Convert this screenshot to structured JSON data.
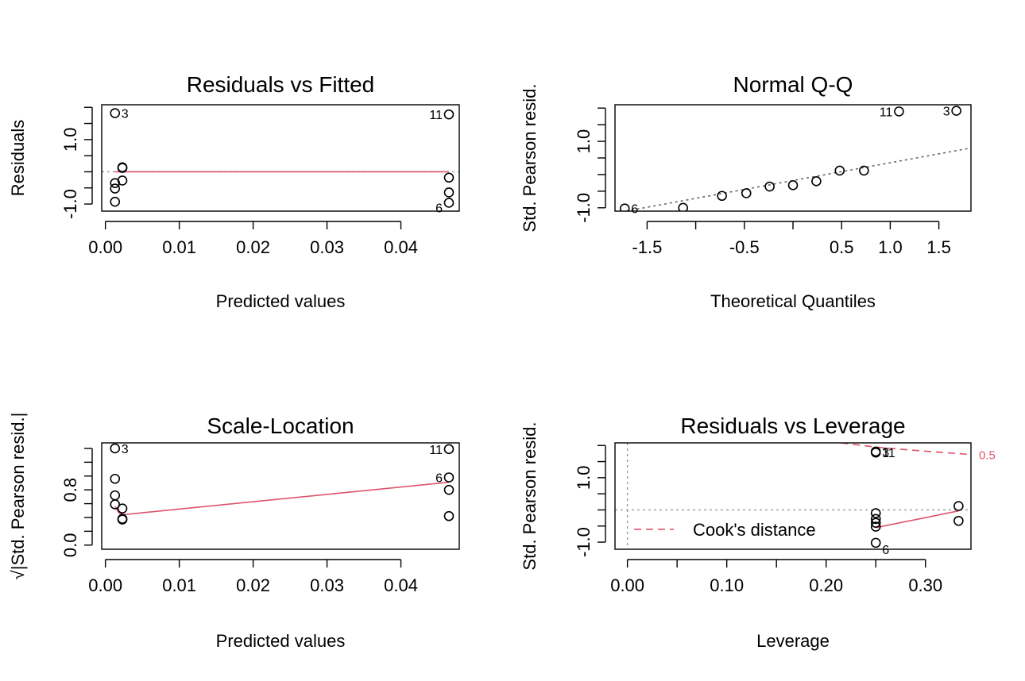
{
  "colors": {
    "smooth": "#DF536B",
    "reference": "#999999",
    "qqline": "#666666",
    "points": "#000000"
  },
  "chart_data": [
    {
      "id": "residuals-vs-fitted",
      "type": "scatter",
      "title": "Residuals vs Fitted",
      "xlabel": "Predicted values",
      "ylabel": "Residuals",
      "xlim": [
        -0.0005,
        0.0479
      ],
      "ylim": [
        -1.22,
        2.08
      ],
      "xticks": [
        0.0,
        0.01,
        0.02,
        0.03,
        0.04
      ],
      "xtick_labels": [
        "0.00",
        "0.01",
        "0.02",
        "0.03",
        "0.04"
      ],
      "yticks": [
        -1.0,
        -0.5,
        0.0,
        0.5,
        1.0,
        1.5,
        2.0
      ],
      "ytick_labels": [
        "-1.0",
        "",
        "",
        "",
        "1.0",
        "",
        ""
      ],
      "points": [
        {
          "x": 0.0013,
          "y": 1.82,
          "label": "3"
        },
        {
          "x": 0.0013,
          "y": -0.35
        },
        {
          "x": 0.0013,
          "y": -0.52
        },
        {
          "x": 0.0013,
          "y": -0.93
        },
        {
          "x": 0.0023,
          "y": 0.12
        },
        {
          "x": 0.0023,
          "y": 0.14
        },
        {
          "x": 0.0023,
          "y": -0.27
        },
        {
          "x": 0.0465,
          "y": 1.78,
          "label": "11"
        },
        {
          "x": 0.0465,
          "y": -0.18
        },
        {
          "x": 0.0465,
          "y": -0.64
        },
        {
          "x": 0.0465,
          "y": -0.96,
          "label": "6"
        }
      ],
      "hline": 0,
      "smooth": [
        [
          0.0013,
          0.0
        ],
        [
          0.0465,
          0.0
        ]
      ]
    },
    {
      "id": "normal-qq",
      "type": "scatter",
      "title": "Normal Q-Q",
      "xlabel": "Theoretical Quantiles",
      "ylabel": "Std. Pearson resid.",
      "xlim": [
        -1.83,
        1.83
      ],
      "ylim": [
        -1.1,
        2.1
      ],
      "xticks": [
        -1.5,
        -1.0,
        -0.5,
        0.0,
        0.5,
        1.0,
        1.5
      ],
      "xtick_labels": [
        "-1.5",
        "",
        "-0.5",
        "",
        "0.5",
        "1.0",
        "1.5"
      ],
      "yticks": [
        -1.0,
        -0.5,
        0.0,
        0.5,
        1.0,
        1.5,
        2.0
      ],
      "ytick_labels": [
        "-1.0",
        "",
        "",
        "",
        "1.0",
        "",
        ""
      ],
      "points": [
        {
          "x": -1.73,
          "y": -1.02,
          "label": "6"
        },
        {
          "x": -1.13,
          "y": -1.0
        },
        {
          "x": -0.73,
          "y": -0.64
        },
        {
          "x": -0.48,
          "y": -0.56
        },
        {
          "x": -0.24,
          "y": -0.36
        },
        {
          "x": 0.0,
          "y": -0.32
        },
        {
          "x": 0.24,
          "y": -0.2
        },
        {
          "x": 0.48,
          "y": 0.12
        },
        {
          "x": 0.73,
          "y": 0.12
        },
        {
          "x": 1.09,
          "y": 1.9,
          "label": "11"
        },
        {
          "x": 1.68,
          "y": 1.92,
          "label": "3"
        }
      ],
      "qqline": [
        [
          -1.83,
          -1.16
        ],
        [
          1.83,
          0.8
        ]
      ]
    },
    {
      "id": "scale-location",
      "type": "scatter",
      "title": "Scale-Location",
      "xlabel": "Predicted values",
      "ylabel": "Std. Pearson resid.",
      "ylabel_prefix": "√|",
      "ylabel_suffix": "|",
      "xlim": [
        -0.0005,
        0.0479
      ],
      "ylim": [
        -0.06,
        1.48
      ],
      "xticks": [
        0.0,
        0.01,
        0.02,
        0.03,
        0.04
      ],
      "xtick_labels": [
        "0.00",
        "0.01",
        "0.02",
        "0.03",
        "0.04"
      ],
      "yticks": [
        0.0,
        0.2,
        0.4,
        0.6,
        0.8,
        1.0,
        1.2,
        1.4
      ],
      "ytick_labels": [
        "0.0",
        "",
        "",
        "",
        "0.8",
        "",
        "",
        ""
      ],
      "points": [
        {
          "x": 0.0013,
          "y": 1.4,
          "label": "3"
        },
        {
          "x": 0.0013,
          "y": 0.96
        },
        {
          "x": 0.0013,
          "y": 0.72
        },
        {
          "x": 0.0013,
          "y": 0.59
        },
        {
          "x": 0.0023,
          "y": 0.53
        },
        {
          "x": 0.0023,
          "y": 0.37
        },
        {
          "x": 0.0023,
          "y": 0.38
        },
        {
          "x": 0.0465,
          "y": 1.39,
          "label": "11"
        },
        {
          "x": 0.0465,
          "y": 0.98,
          "label": "6"
        },
        {
          "x": 0.0465,
          "y": 0.8
        },
        {
          "x": 0.0465,
          "y": 0.42
        }
      ],
      "smooth": [
        [
          0.0013,
          0.56
        ],
        [
          0.0017,
          0.46
        ],
        [
          0.0023,
          0.44
        ],
        [
          0.0465,
          0.91
        ],
        [
          0.0013,
          0.56
        ]
      ],
      "smooth_path": [
        [
          0.0013,
          0.56
        ],
        [
          0.0018,
          0.47
        ],
        [
          0.0023,
          0.44
        ],
        [
          0.0465,
          0.91
        ]
      ]
    },
    {
      "id": "residuals-vs-leverage",
      "type": "scatter",
      "title": "Residuals vs Leverage",
      "xlabel": "Leverage",
      "ylabel": "Std. Pearson resid.",
      "xlim": [
        -0.0125,
        0.3458
      ],
      "ylim": [
        -1.22,
        2.08
      ],
      "xticks": [
        0.0,
        0.05,
        0.1,
        0.15,
        0.2,
        0.25,
        0.3
      ],
      "xtick_labels": [
        "0.00",
        "",
        "0.10",
        "",
        "0.20",
        "",
        "0.30"
      ],
      "yticks": [
        -1.0,
        -0.5,
        0.0,
        0.5,
        1.0,
        1.5,
        2.0
      ],
      "ytick_labels": [
        "-1.0",
        "",
        "",
        "",
        "1.0",
        "",
        ""
      ],
      "points": [
        {
          "x": 0.25,
          "y": 1.81,
          "label": "3"
        },
        {
          "x": 0.25,
          "y": 1.78,
          "label": "11"
        },
        {
          "x": 0.25,
          "y": -0.1
        },
        {
          "x": 0.25,
          "y": -0.28
        },
        {
          "x": 0.25,
          "y": -0.4
        },
        {
          "x": 0.25,
          "y": -0.52
        },
        {
          "x": 0.25,
          "y": -1.02,
          "label": "6"
        },
        {
          "x": 0.3333,
          "y": 0.12
        },
        {
          "x": 0.3333,
          "y": -0.34
        }
      ],
      "hline": 0,
      "vline": 0,
      "smooth": [
        [
          0.25,
          -0.55
        ],
        [
          0.3333,
          -0.03
        ]
      ],
      "cook_level": "0.5",
      "cook_curve": [
        [
          0.215,
          2.08
        ],
        [
          0.25,
          1.95
        ],
        [
          0.28,
          1.87
        ],
        [
          0.31,
          1.8
        ],
        [
          0.3458,
          1.72
        ]
      ],
      "legend": {
        "label": "Cook's distance",
        "position": "bottom-left"
      }
    }
  ]
}
